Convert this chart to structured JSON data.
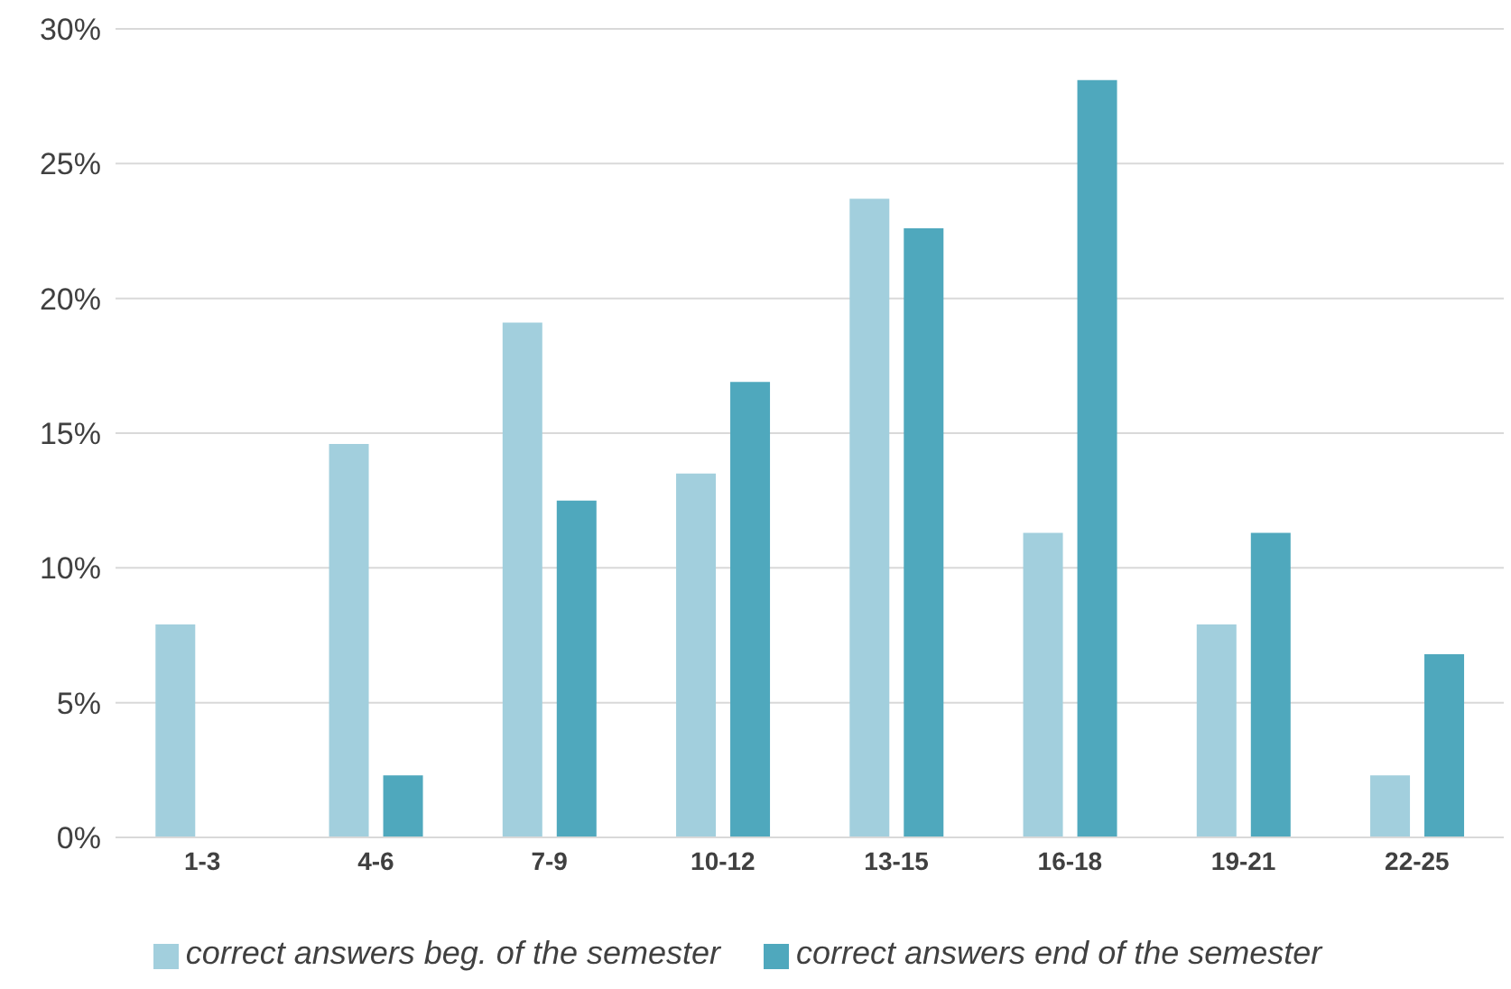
{
  "chart_data": {
    "type": "bar",
    "categories": [
      "1-3",
      "4-6",
      "7-9",
      "10-12",
      "13-15",
      "16-18",
      "19-21",
      "22-25"
    ],
    "series": [
      {
        "name": "correct answers beg. of the semester",
        "color": "#a2cfdd",
        "values": [
          7.9,
          14.6,
          19.1,
          13.5,
          23.7,
          11.3,
          7.9,
          2.3
        ]
      },
      {
        "name": "correct answers end of the semester",
        "color": "#4fa8bd",
        "values": [
          0,
          2.3,
          12.5,
          16.9,
          22.6,
          28.1,
          11.3,
          6.8
        ]
      }
    ],
    "ylim": [
      0,
      30
    ],
    "yticks": [
      {
        "value": 0,
        "label": "0%"
      },
      {
        "value": 5,
        "label": "5%"
      },
      {
        "value": 10,
        "label": "10%"
      },
      {
        "value": 15,
        "label": "15%"
      },
      {
        "value": 20,
        "label": "20%"
      },
      {
        "value": 25,
        "label": "25%"
      },
      {
        "value": 30,
        "label": "30%"
      }
    ],
    "grid": "y",
    "legend": "bottom"
  }
}
